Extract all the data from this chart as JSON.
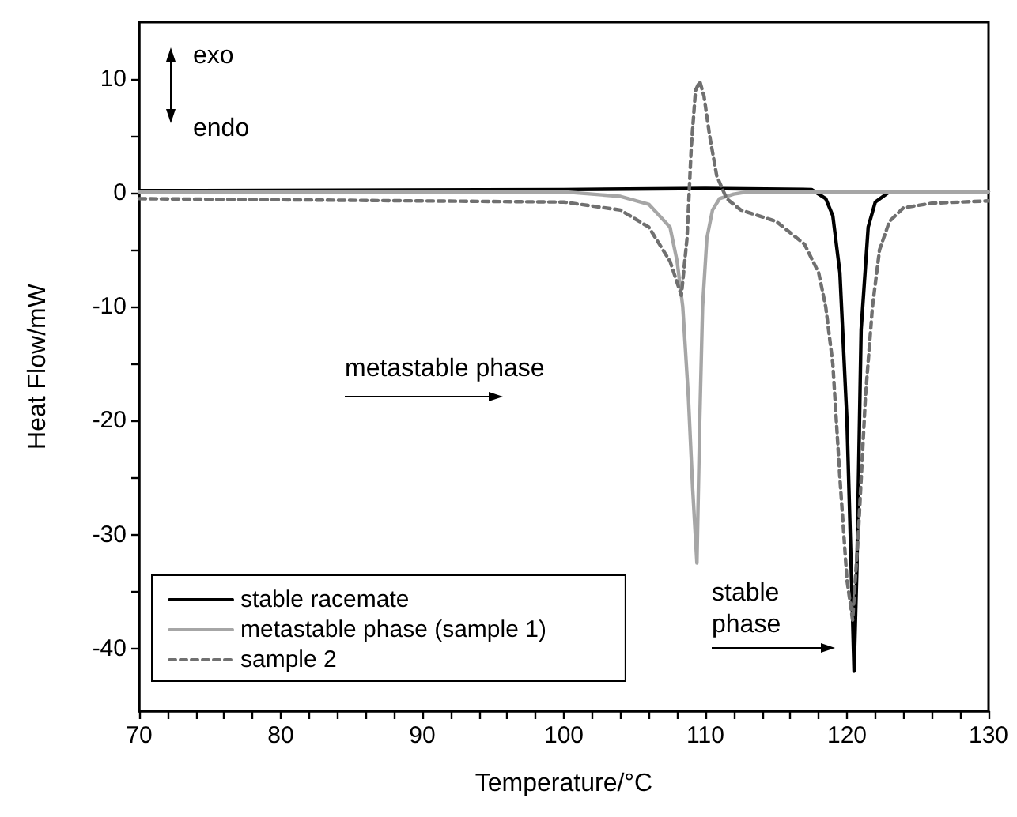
{
  "chart_data": {
    "type": "line",
    "xlabel": "Temperature/°C",
    "ylabel": "Heat Flow/mW",
    "xlim": [
      70,
      130
    ],
    "ylim": [
      -45.5,
      15
    ],
    "xticks": [
      70,
      {
        "value": 72,
        "label": null
      },
      {
        "value": 74,
        "label": null
      },
      {
        "value": 76,
        "label": null
      },
      {
        "value": 78,
        "label": null
      },
      80,
      {
        "value": 82,
        "label": null
      },
      {
        "value": 84,
        "label": null
      },
      {
        "value": 86,
        "label": null
      },
      {
        "value": 88,
        "label": null
      },
      90,
      {
        "value": 92,
        "label": null
      },
      {
        "value": 94,
        "label": null
      },
      {
        "value": 96,
        "label": null
      },
      {
        "value": 98,
        "label": null
      },
      100,
      {
        "value": 102,
        "label": null
      },
      {
        "value": 104,
        "label": null
      },
      {
        "value": 106,
        "label": null
      },
      {
        "value": 108,
        "label": null
      },
      110,
      {
        "value": 112,
        "label": null
      },
      {
        "value": 114,
        "label": null
      },
      {
        "value": 116,
        "label": null
      },
      {
        "value": 118,
        "label": null
      },
      120,
      {
        "value": 122,
        "label": null
      },
      {
        "value": 124,
        "label": null
      },
      {
        "value": 126,
        "label": null
      },
      {
        "value": 128,
        "label": null
      },
      130
    ],
    "yticks": [
      -40,
      {
        "value": -35,
        "label": null
      },
      -30,
      {
        "value": -25,
        "label": null
      },
      -20,
      {
        "value": -15,
        "label": null
      },
      -10,
      {
        "value": -5,
        "label": null
      },
      0,
      {
        "value": 5,
        "label": null
      },
      10
    ],
    "grid": false,
    "legend": "bottom left",
    "marker": "none",
    "series": [
      {
        "name": "stable racemate",
        "color": "#000000",
        "line_style": "solid",
        "x": [
          70,
          100,
          110,
          117.5,
          118.5,
          119,
          119.5,
          120,
          120.3,
          120.5,
          120.7,
          121,
          121.5,
          122,
          123,
          130
        ],
        "values": [
          0.2,
          0.3,
          0.4,
          0.3,
          -0.5,
          -2,
          -7,
          -20,
          -33,
          -42,
          -33,
          -12,
          -3,
          -0.8,
          0.1,
          0.1
        ]
      },
      {
        "name": "metastable phase (sample 1)",
        "color": "#a6a6a6",
        "line_style": "solid",
        "x": [
          70,
          100,
          104,
          106,
          107.5,
          108,
          108.4,
          108.8,
          109.1,
          109.4,
          109.6,
          109.8,
          110.1,
          110.5,
          111,
          112,
          113,
          130
        ],
        "values": [
          0.1,
          0.1,
          -0.3,
          -1,
          -3,
          -6,
          -10,
          -18,
          -26,
          -32.5,
          -20,
          -10,
          -4,
          -1.5,
          -0.5,
          -0.1,
          0.1,
          0.1
        ]
      },
      {
        "name": "sample 2",
        "color": "#707070",
        "line_style": "dashed",
        "x": [
          70,
          100,
          104,
          106,
          107.5,
          108.3,
          108.7,
          109,
          109.3,
          109.6,
          109.9,
          110.3,
          110.8,
          111.5,
          112.5,
          115,
          117,
          118,
          118.5,
          119,
          119.5,
          120,
          120.4,
          120.8,
          121.3,
          121.8,
          122.3,
          123,
          124,
          126,
          130
        ],
        "values": [
          -0.5,
          -0.8,
          -1.5,
          -3,
          -6,
          -9,
          -4,
          4,
          9,
          9.8,
          8.5,
          5,
          1.5,
          -0.5,
          -1.5,
          -2.5,
          -4.5,
          -7,
          -10,
          -15,
          -25,
          -34,
          -37.5,
          -30,
          -18,
          -10,
          -5,
          -2.5,
          -1.3,
          -0.9,
          -0.7
        ]
      }
    ],
    "annotations": [
      "exo",
      "endo",
      "metastable phase",
      "stable\nphase"
    ]
  }
}
